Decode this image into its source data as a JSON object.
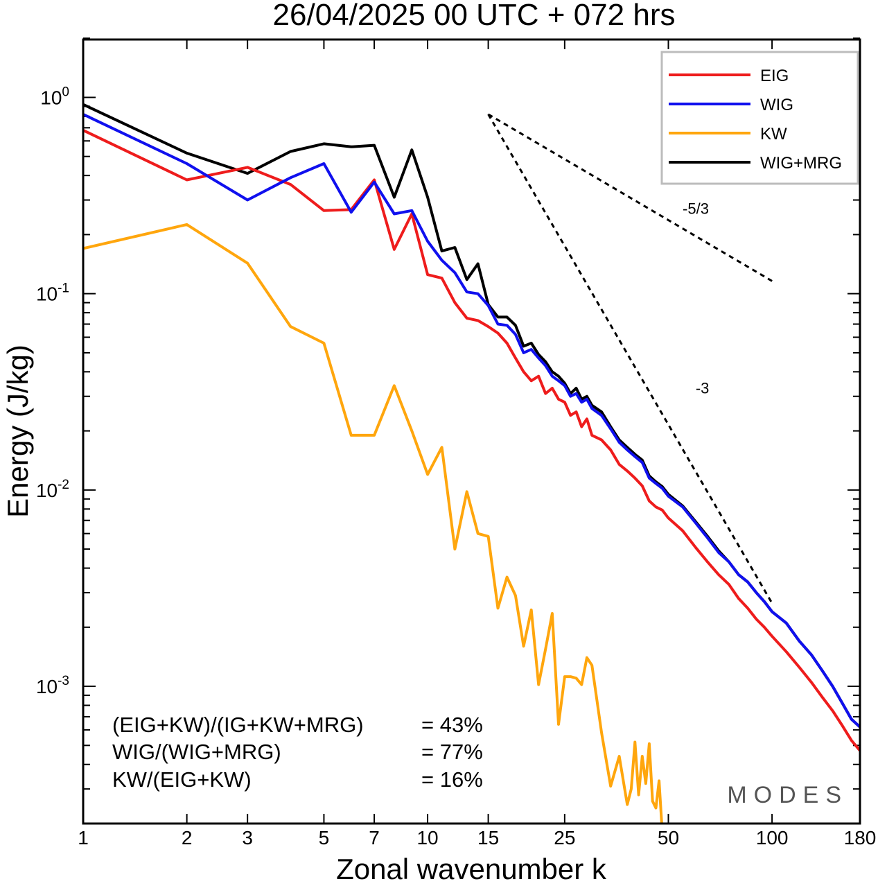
{
  "chart_data": {
    "type": "line",
    "title": "26/04/2025  00 UTC  + 072 hrs",
    "xlabel": "Zonal wavenumber k",
    "ylabel": "Energy (J/kg)",
    "xscale": "log",
    "yscale": "log",
    "xlim": [
      1,
      180
    ],
    "ylim": [
      0.0002,
      2
    ],
    "x_ticks": [
      1,
      2,
      3,
      5,
      7,
      10,
      15,
      25,
      50,
      100,
      180
    ],
    "x_tick_labels": [
      "1",
      "2",
      "3",
      "5",
      "7",
      "10",
      "15",
      "25",
      "50",
      "100",
      "180"
    ],
    "y_tick_labels": [
      {
        "base": "10",
        "exp": "0"
      },
      {
        "base": "10",
        "exp": "-1"
      },
      {
        "base": "10",
        "exp": "-2"
      },
      {
        "base": "10",
        "exp": "-3"
      }
    ],
    "legend_position": "top-right",
    "series": [
      {
        "name": "EIG",
        "color": "#ee1c1c",
        "points": [
          [
            1,
            0.68
          ],
          [
            2,
            0.38
          ],
          [
            3,
            0.44
          ],
          [
            4,
            0.36
          ],
          [
            5,
            0.265
          ],
          [
            6,
            0.268
          ],
          [
            7,
            0.38
          ],
          [
            8,
            0.168
          ],
          [
            9,
            0.255
          ],
          [
            10,
            0.125
          ],
          [
            11,
            0.12
          ],
          [
            12,
            0.09
          ],
          [
            13,
            0.075
          ],
          [
            14,
            0.073
          ],
          [
            15,
            0.068
          ],
          [
            16,
            0.063
          ],
          [
            17,
            0.056
          ],
          [
            18,
            0.047
          ],
          [
            19,
            0.04
          ],
          [
            20,
            0.036
          ],
          [
            21,
            0.038
          ],
          [
            22,
            0.031
          ],
          [
            23,
            0.033
          ],
          [
            24,
            0.029
          ],
          [
            25,
            0.028
          ],
          [
            26,
            0.024
          ],
          [
            27,
            0.025
          ],
          [
            28,
            0.021
          ],
          [
            29,
            0.023
          ],
          [
            30,
            0.019
          ],
          [
            32,
            0.018
          ],
          [
            34,
            0.016
          ],
          [
            36,
            0.0135
          ],
          [
            38,
            0.0125
          ],
          [
            40,
            0.0115
          ],
          [
            42,
            0.0105
          ],
          [
            44,
            0.0088
          ],
          [
            46,
            0.0082
          ],
          [
            48,
            0.0079
          ],
          [
            50,
            0.0072
          ],
          [
            55,
            0.0062
          ],
          [
            60,
            0.0051
          ],
          [
            65,
            0.0043
          ],
          [
            70,
            0.0037
          ],
          [
            75,
            0.0033
          ],
          [
            80,
            0.0028
          ],
          [
            85,
            0.0025
          ],
          [
            90,
            0.0022
          ],
          [
            95,
            0.002
          ],
          [
            100,
            0.0018
          ],
          [
            110,
            0.0015
          ],
          [
            120,
            0.00125
          ],
          [
            130,
            0.00105
          ],
          [
            140,
            0.00088
          ],
          [
            150,
            0.00075
          ],
          [
            160,
            0.00063
          ],
          [
            170,
            0.00053
          ],
          [
            180,
            0.00047
          ]
        ]
      },
      {
        "name": "WIG",
        "color": "#1010ee",
        "points": [
          [
            1,
            0.82
          ],
          [
            2,
            0.46
          ],
          [
            3,
            0.3
          ],
          [
            4,
            0.39
          ],
          [
            5,
            0.46
          ],
          [
            6,
            0.26
          ],
          [
            7,
            0.37
          ],
          [
            8,
            0.255
          ],
          [
            9,
            0.265
          ],
          [
            10,
            0.185
          ],
          [
            11,
            0.148
          ],
          [
            12,
            0.128
          ],
          [
            13,
            0.102
          ],
          [
            14,
            0.1
          ],
          [
            15,
            0.087
          ],
          [
            16,
            0.07
          ],
          [
            17,
            0.069
          ],
          [
            18,
            0.062
          ],
          [
            19,
            0.05
          ],
          [
            20,
            0.052
          ],
          [
            21,
            0.047
          ],
          [
            22,
            0.043
          ],
          [
            23,
            0.038
          ],
          [
            24,
            0.036
          ],
          [
            25,
            0.034
          ],
          [
            26,
            0.03
          ],
          [
            27,
            0.031
          ],
          [
            28,
            0.028
          ],
          [
            29,
            0.029
          ],
          [
            30,
            0.026
          ],
          [
            32,
            0.024
          ],
          [
            34,
            0.0205
          ],
          [
            36,
            0.0175
          ],
          [
            38,
            0.016
          ],
          [
            40,
            0.0148
          ],
          [
            42,
            0.0138
          ],
          [
            44,
            0.0115
          ],
          [
            46,
            0.0108
          ],
          [
            48,
            0.0102
          ],
          [
            50,
            0.0093
          ],
          [
            55,
            0.0082
          ],
          [
            60,
            0.0068
          ],
          [
            65,
            0.0057
          ],
          [
            70,
            0.0048
          ],
          [
            75,
            0.0043
          ],
          [
            80,
            0.0037
          ],
          [
            85,
            0.0034
          ],
          [
            90,
            0.003
          ],
          [
            95,
            0.0027
          ],
          [
            100,
            0.0024
          ],
          [
            110,
            0.0021
          ],
          [
            120,
            0.0017
          ],
          [
            130,
            0.00145
          ],
          [
            140,
            0.0012
          ],
          [
            150,
            0.001
          ],
          [
            160,
            0.00082
          ],
          [
            170,
            0.00068
          ],
          [
            180,
            0.00062
          ]
        ]
      },
      {
        "name": "KW",
        "color": "#ffa60d",
        "points": [
          [
            1,
            0.17
          ],
          [
            2,
            0.225
          ],
          [
            3,
            0.143
          ],
          [
            4,
            0.068
          ],
          [
            5,
            0.056
          ],
          [
            6,
            0.019
          ],
          [
            7,
            0.019
          ],
          [
            8,
            0.034
          ],
          [
            9,
            0.02
          ],
          [
            10,
            0.012
          ],
          [
            11,
            0.0165
          ],
          [
            12,
            0.005
          ],
          [
            13,
            0.0098
          ],
          [
            14,
            0.006
          ],
          [
            15,
            0.0058
          ],
          [
            16,
            0.0025
          ],
          [
            17,
            0.0036
          ],
          [
            18,
            0.0029
          ],
          [
            19,
            0.0016
          ],
          [
            20,
            0.00245
          ],
          [
            21,
            0.00102
          ],
          [
            22,
            0.00155
          ],
          [
            23,
            0.00235
          ],
          [
            24,
            0.00064
          ],
          [
            25,
            0.00112
          ],
          [
            26,
            0.00112
          ],
          [
            27,
            0.0011
          ],
          [
            28,
            0.00102
          ],
          [
            29,
            0.0014
          ],
          [
            30,
            0.00128
          ],
          [
            32,
            0.00058
          ],
          [
            34,
            0.00031
          ],
          [
            36,
            0.00044
          ],
          [
            38,
            0.00025
          ],
          [
            39,
            0.0003
          ],
          [
            40,
            0.00052
          ],
          [
            41,
            0.00028
          ],
          [
            42,
            0.00044
          ],
          [
            43,
            0.00032
          ],
          [
            44,
            0.00051
          ],
          [
            45,
            0.00026
          ],
          [
            46,
            0.00024
          ],
          [
            47,
            0.00033
          ],
          [
            48,
            0.00018
          ]
        ]
      },
      {
        "name": "WIG+MRG",
        "color": "#000000",
        "points": [
          [
            1,
            0.92
          ],
          [
            2,
            0.52
          ],
          [
            3,
            0.41
          ],
          [
            4,
            0.53
          ],
          [
            5,
            0.58
          ],
          [
            6,
            0.56
          ],
          [
            7,
            0.57
          ],
          [
            8,
            0.31
          ],
          [
            9,
            0.54
          ],
          [
            10,
            0.31
          ],
          [
            11,
            0.165
          ],
          [
            12,
            0.172
          ],
          [
            13,
            0.118
          ],
          [
            14,
            0.142
          ],
          [
            15,
            0.088
          ],
          [
            16,
            0.076
          ],
          [
            17,
            0.076
          ],
          [
            18,
            0.069
          ],
          [
            19,
            0.054
          ],
          [
            20,
            0.056
          ],
          [
            21,
            0.049
          ],
          [
            22,
            0.045
          ],
          [
            23,
            0.04
          ],
          [
            24,
            0.038
          ],
          [
            25,
            0.035
          ],
          [
            26,
            0.031
          ],
          [
            27,
            0.033
          ],
          [
            28,
            0.029
          ],
          [
            29,
            0.03
          ],
          [
            30,
            0.027
          ],
          [
            32,
            0.025
          ],
          [
            34,
            0.021
          ],
          [
            36,
            0.018
          ],
          [
            38,
            0.0165
          ],
          [
            40,
            0.0152
          ],
          [
            42,
            0.0142
          ],
          [
            44,
            0.0118
          ],
          [
            46,
            0.011
          ],
          [
            48,
            0.0104
          ],
          [
            50,
            0.0095
          ],
          [
            55,
            0.0083
          ],
          [
            60,
            0.0069
          ],
          [
            65,
            0.0058
          ],
          [
            70,
            0.0049
          ],
          [
            75,
            0.0043
          ],
          [
            80,
            0.0037
          ],
          [
            85,
            0.0034
          ],
          [
            90,
            0.003
          ],
          [
            95,
            0.0027
          ],
          [
            100,
            0.0024
          ],
          [
            110,
            0.0021
          ],
          [
            120,
            0.0017
          ],
          [
            130,
            0.00145
          ],
          [
            140,
            0.0012
          ],
          [
            150,
            0.001
          ],
          [
            160,
            0.00082
          ],
          [
            170,
            0.00068
          ],
          [
            180,
            0.00062
          ]
        ]
      }
    ],
    "reference_slopes": [
      {
        "label": "-5/3",
        "points": [
          [
            15,
            0.82
          ],
          [
            100,
            0.116
          ]
        ]
      },
      {
        "label": "-3",
        "points": [
          [
            15,
            0.82
          ],
          [
            100,
            0.00265
          ]
        ]
      }
    ],
    "annotations": [
      {
        "text": "(EIG+KW)/(IG+KW+MRG)",
        "value": "= 43%"
      },
      {
        "text": "WIG/(WIG+MRG)",
        "value": "= 77%"
      },
      {
        "text": "KW/(EIG+KW)",
        "value": "= 16%"
      }
    ],
    "watermark": "MODES"
  }
}
